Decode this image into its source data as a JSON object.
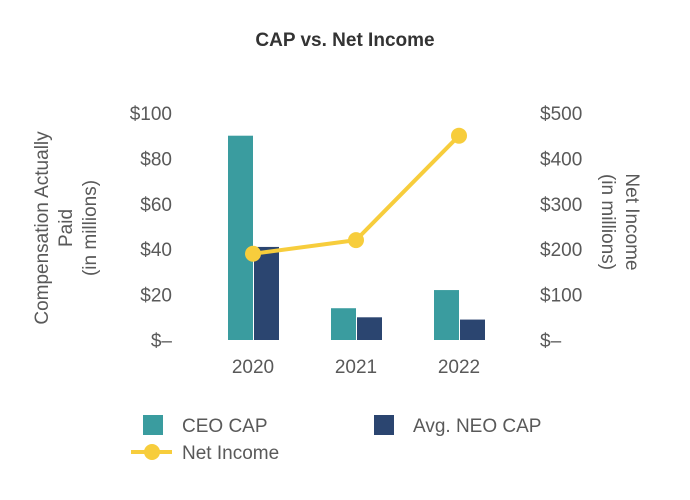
{
  "chart_data": {
    "type": "bar",
    "title": "CAP vs. Net Income",
    "categories": [
      "2020",
      "2021",
      "2022"
    ],
    "series": [
      {
        "name": "CEO CAP",
        "kind": "bar",
        "axis": "left",
        "color": "#3a9c9f",
        "values": [
          90,
          14,
          22
        ]
      },
      {
        "name": "Avg. NEO CAP",
        "kind": "bar",
        "axis": "left",
        "color": "#2b4570",
        "values": [
          41,
          10,
          9
        ]
      },
      {
        "name": "Net Income",
        "kind": "line",
        "axis": "right",
        "color": "#f7cd3c",
        "values": [
          190,
          220,
          450
        ]
      }
    ],
    "y_left": {
      "label_lines": [
        "Compensation Actually",
        "Paid",
        "(in millions)"
      ],
      "range": [
        0,
        100
      ],
      "ticks": [
        0,
        20,
        40,
        60,
        80,
        100
      ],
      "tick_labels": [
        "$–",
        "$20",
        "$40",
        "$60",
        "$80",
        "$100"
      ]
    },
    "y_right": {
      "label_lines": [
        "Net Income",
        "(in millions)"
      ],
      "range": [
        0,
        500
      ],
      "ticks": [
        0,
        100,
        200,
        300,
        400,
        500
      ],
      "tick_labels": [
        "$–",
        "$100",
        "$200",
        "$300",
        "$400",
        "$500"
      ]
    },
    "grid": false,
    "legend_position": "bottom-left"
  }
}
